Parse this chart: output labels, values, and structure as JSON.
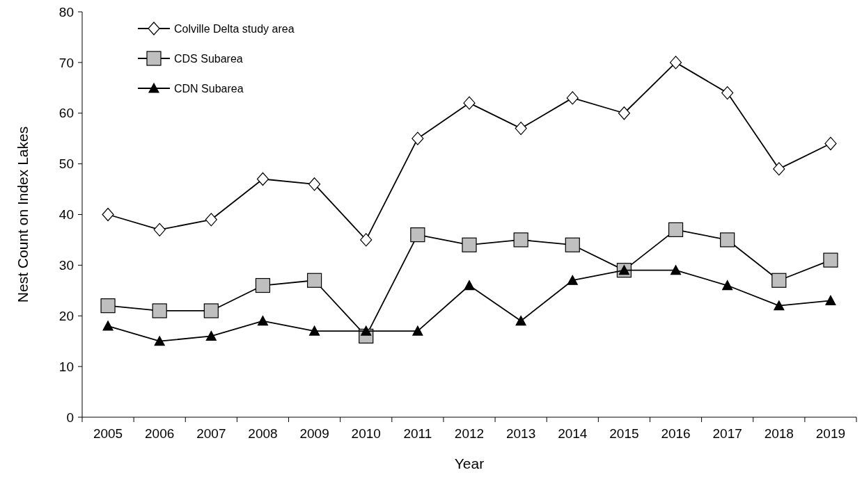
{
  "chart_data": {
    "type": "line",
    "xlabel": "Year",
    "ylabel": "Nest Count on Index Lakes",
    "categories": [
      "2005",
      "2006",
      "2007",
      "2008",
      "2009",
      "2010",
      "2011",
      "2012",
      "2013",
      "2014",
      "2015",
      "2016",
      "2017",
      "2018",
      "2019"
    ],
    "series": [
      {
        "name": "Colville Delta study area",
        "color": "#ffffff",
        "marker": "diamond",
        "values": [
          40,
          37,
          39,
          47,
          46,
          35,
          55,
          62,
          57,
          63,
          60,
          70,
          64,
          49,
          54
        ]
      },
      {
        "name": "CDS Subarea",
        "color": "#bfbfbf",
        "marker": "square",
        "values": [
          22,
          21,
          21,
          26,
          27,
          16,
          36,
          34,
          35,
          34,
          29,
          37,
          35,
          27,
          31
        ]
      },
      {
        "name": "CDN Subarea",
        "color": "#000000",
        "marker": "triangle",
        "values": [
          18,
          15,
          16,
          19,
          17,
          17,
          17,
          26,
          19,
          27,
          29,
          29,
          26,
          22,
          23
        ]
      }
    ],
    "ylim": [
      0,
      80
    ],
    "yticks": [
      0,
      10,
      20,
      30,
      40,
      50,
      60,
      70,
      80
    ],
    "grid": false,
    "legend": "top left",
    "line_style": "solid"
  }
}
